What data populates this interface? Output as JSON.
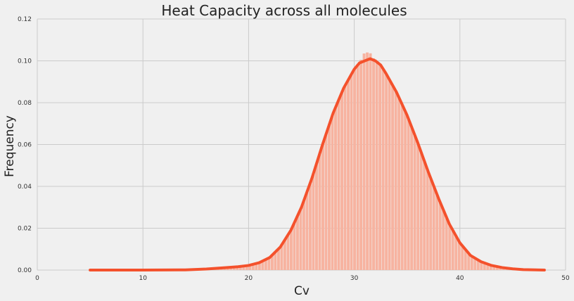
{
  "chart_data": {
    "type": "bar",
    "title": "Heat Capacity across all molecules",
    "xlabel": "Cv",
    "ylabel": "Frequency",
    "xlim": [
      0,
      50
    ],
    "ylim": [
      0,
      0.12
    ],
    "xticks": [
      "0",
      "10",
      "20",
      "30",
      "40",
      "50"
    ],
    "yticks": [
      "0.00",
      "0.02",
      "0.04",
      "0.06",
      "0.08",
      "0.10",
      "0.12"
    ],
    "grid": true,
    "legend": "none",
    "colors": {
      "background": "#f0f0f0",
      "grid": "#cbcbcb",
      "bars": "#f7b3a0",
      "kde_line": "#f4512c"
    },
    "series": [
      {
        "kind": "kde-line",
        "x": [
          5,
          10,
          14,
          16,
          18,
          19,
          20,
          21,
          22,
          23,
          24,
          25,
          26,
          27,
          28,
          29,
          30,
          30.5,
          31,
          31.5,
          32,
          32.5,
          33,
          34,
          35,
          36,
          37,
          38,
          39,
          40,
          41,
          42,
          43,
          44,
          45,
          46,
          48
        ],
        "y": [
          0,
          0,
          0.0001,
          0.0005,
          0.0012,
          0.0016,
          0.0022,
          0.0035,
          0.006,
          0.011,
          0.019,
          0.03,
          0.044,
          0.06,
          0.075,
          0.087,
          0.096,
          0.099,
          0.1,
          0.101,
          0.1,
          0.098,
          0.094,
          0.085,
          0.074,
          0.061,
          0.047,
          0.034,
          0.022,
          0.013,
          0.007,
          0.004,
          0.0022,
          0.0012,
          0.0006,
          0.0002,
          0
        ]
      },
      {
        "kind": "histogram",
        "bin_width": 0.3,
        "x": [
          5,
          10,
          14,
          16,
          18,
          19,
          20,
          21,
          22,
          23,
          24,
          25,
          26,
          27,
          28,
          29,
          30,
          30.5,
          31,
          31.5,
          32,
          32.5,
          33,
          34,
          35,
          36,
          37,
          38,
          39,
          40,
          41,
          42,
          43,
          44,
          45,
          46,
          48
        ],
        "y": [
          0,
          0,
          0.0001,
          0.0005,
          0.0012,
          0.0016,
          0.0022,
          0.0035,
          0.006,
          0.011,
          0.019,
          0.03,
          0.044,
          0.06,
          0.075,
          0.087,
          0.096,
          0.099,
          0.104,
          0.104,
          0.1,
          0.098,
          0.094,
          0.085,
          0.074,
          0.061,
          0.047,
          0.034,
          0.022,
          0.013,
          0.007,
          0.004,
          0.0022,
          0.0012,
          0.0006,
          0.0002,
          0
        ]
      }
    ]
  }
}
